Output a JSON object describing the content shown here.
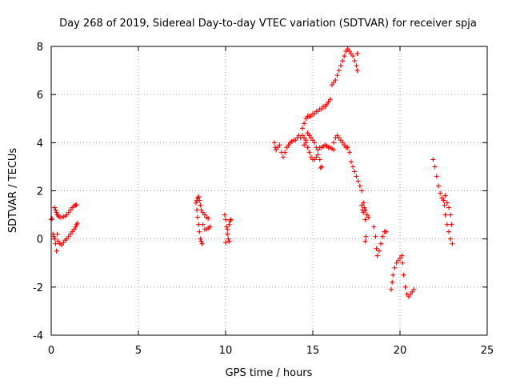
{
  "chart_data": {
    "type": "scatter",
    "title": "Day 268 of 2019, Sidereal Day-to-day VTEC variation (SDTVAR) for receiver spja",
    "xlabel": "GPS time / hours",
    "ylabel": "SDTVAR / TECUs",
    "xlim": [
      0,
      25
    ],
    "ylim": [
      -4,
      8
    ],
    "xticks": [
      0,
      5,
      10,
      15,
      20,
      25
    ],
    "yticks": [
      -4,
      -2,
      0,
      2,
      4,
      6,
      8
    ],
    "grid": true,
    "marker": "plus",
    "color": "#ff0000",
    "series": [
      {
        "name": "spja",
        "points": [
          [
            0.0,
            0.8
          ],
          [
            0.05,
            0.85
          ],
          [
            0.1,
            0.2
          ],
          [
            0.15,
            0.1
          ],
          [
            0.2,
            0.0
          ],
          [
            0.25,
            -0.2
          ],
          [
            0.3,
            -0.5
          ],
          [
            0.35,
            0.2
          ],
          [
            0.18,
            1.3
          ],
          [
            0.25,
            1.2
          ],
          [
            0.3,
            1.1
          ],
          [
            0.35,
            1.0
          ],
          [
            0.4,
            0.95
          ],
          [
            0.5,
            0.9
          ],
          [
            0.6,
            0.9
          ],
          [
            0.7,
            0.92
          ],
          [
            0.8,
            0.95
          ],
          [
            0.9,
            1.0
          ],
          [
            1.0,
            1.1
          ],
          [
            1.1,
            1.2
          ],
          [
            1.2,
            1.3
          ],
          [
            1.3,
            1.38
          ],
          [
            1.4,
            1.4
          ],
          [
            1.45,
            1.42
          ],
          [
            0.4,
            -0.1
          ],
          [
            0.5,
            -0.2
          ],
          [
            0.6,
            -0.25
          ],
          [
            0.7,
            -0.15
          ],
          [
            0.8,
            -0.05
          ],
          [
            0.9,
            0.0
          ],
          [
            1.0,
            0.1
          ],
          [
            1.1,
            0.2
          ],
          [
            1.2,
            0.3
          ],
          [
            1.3,
            0.4
          ],
          [
            1.4,
            0.5
          ],
          [
            1.45,
            0.6
          ],
          [
            1.5,
            0.65
          ],
          [
            8.3,
            1.5
          ],
          [
            8.35,
            1.2
          ],
          [
            8.4,
            0.9
          ],
          [
            8.45,
            0.6
          ],
          [
            8.5,
            0.3
          ],
          [
            8.55,
            0.0
          ],
          [
            8.6,
            -0.1
          ],
          [
            8.65,
            -0.2
          ],
          [
            8.35,
            1.6
          ],
          [
            8.4,
            1.7
          ],
          [
            8.45,
            1.75
          ],
          [
            8.5,
            1.6
          ],
          [
            8.55,
            1.4
          ],
          [
            8.6,
            1.2
          ],
          [
            8.7,
            1.1
          ],
          [
            8.8,
            1.0
          ],
          [
            8.9,
            0.9
          ],
          [
            9.0,
            0.85
          ],
          [
            8.7,
            0.6
          ],
          [
            8.8,
            0.4
          ],
          [
            8.9,
            0.4
          ],
          [
            9.0,
            0.45
          ],
          [
            9.1,
            0.5
          ],
          [
            9.95,
            1.0
          ],
          [
            10.0,
            0.8
          ],
          [
            10.05,
            0.5
          ],
          [
            10.1,
            0.2
          ],
          [
            10.15,
            0.0
          ],
          [
            10.2,
            -0.1
          ],
          [
            10.0,
            -0.15
          ],
          [
            10.1,
            0.4
          ],
          [
            10.2,
            0.6
          ],
          [
            10.25,
            0.75
          ],
          [
            10.3,
            0.8
          ],
          [
            12.8,
            4.0
          ],
          [
            12.85,
            3.8
          ],
          [
            12.9,
            3.7
          ],
          [
            13.0,
            3.8
          ],
          [
            13.1,
            3.9
          ],
          [
            13.2,
            3.6
          ],
          [
            13.3,
            3.4
          ],
          [
            13.4,
            3.6
          ],
          [
            13.5,
            3.8
          ],
          [
            13.6,
            3.9
          ],
          [
            13.7,
            4.0
          ],
          [
            13.8,
            4.05
          ],
          [
            13.9,
            4.1
          ],
          [
            14.0,
            4.1
          ],
          [
            14.1,
            4.2
          ],
          [
            14.2,
            4.3
          ],
          [
            14.3,
            4.2
          ],
          [
            14.4,
            4.3
          ],
          [
            14.5,
            4.2
          ],
          [
            14.6,
            4.0
          ],
          [
            14.7,
            3.8
          ],
          [
            14.8,
            3.6
          ],
          [
            14.9,
            3.4
          ],
          [
            15.0,
            3.3
          ],
          [
            15.1,
            3.3
          ],
          [
            15.2,
            3.4
          ],
          [
            15.3,
            3.5
          ],
          [
            15.4,
            3.3
          ],
          [
            15.5,
            3.0
          ],
          [
            15.45,
            2.95
          ],
          [
            14.5,
            3.9
          ],
          [
            14.6,
            4.1
          ],
          [
            14.7,
            4.4
          ],
          [
            14.8,
            4.3
          ],
          [
            14.9,
            4.2
          ],
          [
            15.0,
            4.1
          ],
          [
            15.1,
            4.0
          ],
          [
            15.2,
            3.8
          ],
          [
            15.3,
            3.7
          ],
          [
            15.4,
            3.8
          ],
          [
            15.5,
            3.8
          ],
          [
            15.6,
            3.85
          ],
          [
            15.7,
            3.9
          ],
          [
            15.8,
            3.85
          ],
          [
            15.9,
            3.8
          ],
          [
            16.0,
            3.8
          ],
          [
            16.1,
            3.75
          ],
          [
            16.2,
            3.7
          ],
          [
            14.4,
            4.6
          ],
          [
            14.5,
            4.8
          ],
          [
            14.6,
            5.0
          ],
          [
            14.7,
            5.1
          ],
          [
            14.8,
            5.1
          ],
          [
            14.9,
            5.1
          ],
          [
            15.0,
            5.2
          ],
          [
            15.1,
            5.2
          ],
          [
            15.2,
            5.3
          ],
          [
            15.3,
            5.3
          ],
          [
            15.4,
            5.4
          ],
          [
            15.5,
            5.4
          ],
          [
            15.6,
            5.5
          ],
          [
            15.7,
            5.5
          ],
          [
            15.8,
            5.6
          ],
          [
            15.9,
            5.7
          ],
          [
            16.0,
            5.8
          ],
          [
            16.2,
            4.0
          ],
          [
            16.3,
            4.2
          ],
          [
            16.4,
            4.3
          ],
          [
            16.5,
            4.2
          ],
          [
            16.6,
            4.1
          ],
          [
            16.7,
            4.0
          ],
          [
            16.8,
            3.9
          ],
          [
            16.9,
            3.8
          ],
          [
            17.0,
            3.8
          ],
          [
            17.1,
            3.6
          ],
          [
            17.2,
            3.2
          ],
          [
            17.3,
            3.0
          ],
          [
            17.4,
            2.8
          ],
          [
            17.5,
            2.6
          ],
          [
            17.6,
            2.4
          ],
          [
            17.7,
            2.2
          ],
          [
            17.8,
            2.0
          ],
          [
            17.9,
            1.5
          ],
          [
            18.0,
            0.8
          ],
          [
            18.05,
            0.1
          ],
          [
            18.0,
            -0.1
          ],
          [
            17.8,
            1.4
          ],
          [
            17.85,
            1.2
          ],
          [
            17.9,
            1.1
          ],
          [
            17.95,
            1.3
          ],
          [
            18.0,
            1.2
          ],
          [
            18.1,
            1.0
          ],
          [
            18.2,
            0.9
          ],
          [
            16.1,
            6.4
          ],
          [
            16.2,
            6.5
          ],
          [
            16.3,
            6.6
          ],
          [
            16.4,
            6.8
          ],
          [
            16.5,
            7.0
          ],
          [
            16.6,
            7.2
          ],
          [
            16.7,
            7.4
          ],
          [
            16.8,
            7.6
          ],
          [
            16.9,
            7.8
          ],
          [
            17.0,
            7.9
          ],
          [
            17.1,
            7.8
          ],
          [
            17.2,
            7.7
          ],
          [
            17.3,
            7.6
          ],
          [
            17.4,
            7.4
          ],
          [
            17.5,
            7.2
          ],
          [
            17.55,
            7.0
          ],
          [
            17.55,
            7.7
          ],
          [
            18.5,
            0.5
          ],
          [
            18.6,
            0.1
          ],
          [
            18.65,
            -0.4
          ],
          [
            18.7,
            -0.7
          ],
          [
            18.8,
            -0.5
          ],
          [
            18.9,
            -0.2
          ],
          [
            19.0,
            0.1
          ],
          [
            19.1,
            0.3
          ],
          [
            19.2,
            0.3
          ],
          [
            19.5,
            -2.1
          ],
          [
            19.55,
            -1.8
          ],
          [
            19.6,
            -1.5
          ],
          [
            19.7,
            -1.2
          ],
          [
            19.8,
            -1.0
          ],
          [
            19.9,
            -0.9
          ],
          [
            20.0,
            -0.8
          ],
          [
            20.1,
            -0.7
          ],
          [
            20.15,
            -1.0
          ],
          [
            20.2,
            -1.5
          ],
          [
            20.3,
            -2.0
          ],
          [
            20.4,
            -2.3
          ],
          [
            20.5,
            -2.4
          ],
          [
            20.6,
            -2.3
          ],
          [
            20.7,
            -2.2
          ],
          [
            20.8,
            -2.1
          ],
          [
            21.9,
            3.3
          ],
          [
            22.0,
            3.0
          ],
          [
            22.1,
            2.6
          ],
          [
            22.2,
            2.2
          ],
          [
            22.3,
            1.9
          ],
          [
            22.4,
            1.7
          ],
          [
            22.5,
            1.6
          ],
          [
            22.55,
            1.4
          ],
          [
            22.6,
            1.0
          ],
          [
            22.7,
            0.6
          ],
          [
            22.8,
            0.3
          ],
          [
            22.9,
            0.0
          ],
          [
            23.0,
            -0.2
          ],
          [
            22.6,
            1.8
          ],
          [
            22.7,
            1.5
          ],
          [
            22.8,
            1.3
          ],
          [
            22.9,
            1.0
          ],
          [
            22.95,
            0.6
          ]
        ]
      }
    ]
  }
}
